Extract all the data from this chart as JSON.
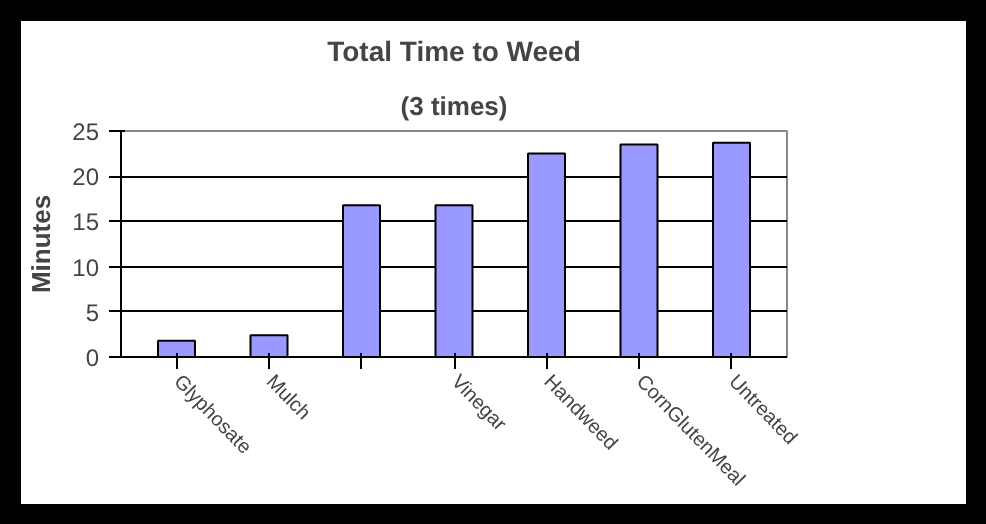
{
  "chart_data": {
    "type": "bar",
    "title": "Total Time to Weed",
    "subtitle": "(3 times)",
    "ylabel": "Minutes",
    "categories": [
      "Glyphosate",
      "Mulch",
      null,
      "Vinegar",
      "Handweed",
      "CornGlutenMeal",
      "Untreated"
    ],
    "values": [
      1.8,
      2.4,
      16.8,
      16.8,
      22.5,
      23.5,
      23.7
    ],
    "color": "#9999ff",
    "ylim": [
      0,
      25
    ],
    "yticks": [
      0,
      5,
      10,
      15,
      20,
      25
    ],
    "grid": "y"
  }
}
